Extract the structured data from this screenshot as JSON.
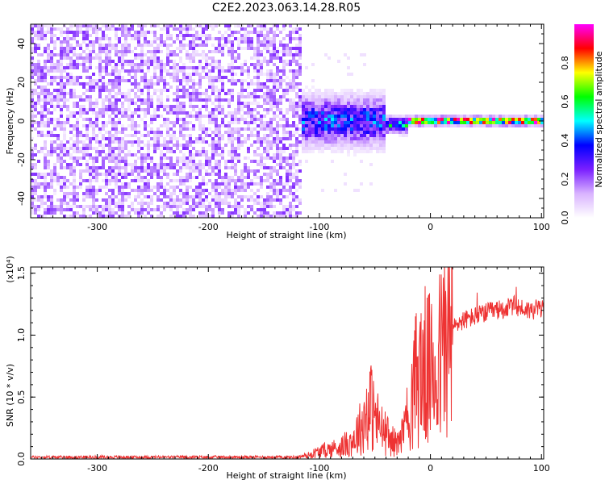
{
  "title": "C2E2.2023.063.14.28.R05",
  "chart_data": [
    {
      "type": "heatmap",
      "xlabel": "Height of straight line (km)",
      "ylabel": "Frequency (Hz)",
      "xlim": [
        -360,
        102
      ],
      "ylim": [
        -50,
        50
      ],
      "xticks": [
        -300,
        -200,
        -100,
        0,
        100
      ],
      "yticks": [
        -40,
        -20,
        0,
        20,
        40
      ],
      "colorbar": {
        "label": "Normalized spectral amplitude",
        "range": [
          0.0,
          1.0
        ],
        "ticks": [
          "0.0",
          "0.2",
          "0.4",
          "0.6",
          "0.8"
        ],
        "colors": [
          "#ffffff",
          "#d9b3ff",
          "#7a1fff",
          "#0000ff",
          "#00ffff",
          "#00ff00",
          "#ffff00",
          "#ff0000",
          "#ff00ff"
        ]
      },
      "regions": [
        {
          "x_range": [
            -360,
            -116
          ],
          "description_level": "noise",
          "amplitude": 0.15
        },
        {
          "x_range": [
            -116,
            -40
          ],
          "center_freq": 0,
          "spread_hz": 12,
          "amplitude": 0.35
        },
        {
          "x_range": [
            -40,
            -20
          ],
          "center_freq": -2,
          "spread_hz": 4,
          "amplitude": 0.45
        },
        {
          "x_range": [
            -20,
            102
          ],
          "center_freq": 0,
          "spread_hz": 2,
          "amplitude": 0.9
        }
      ]
    },
    {
      "type": "line",
      "xlabel": "Height of straight line (km)",
      "ylabel": "SNR (10 * v/v)",
      "yscale_label": "(x10⁴)",
      "xlim": [
        -360,
        102
      ],
      "ylim": [
        0,
        1.55
      ],
      "xticks": [
        -300,
        -200,
        -100,
        0,
        100
      ],
      "yticks": [
        "0.0",
        "0.5",
        "1.0",
        "1.5"
      ],
      "series_color": "#ee3333",
      "x": [
        -360,
        -300,
        -200,
        -120,
        -110,
        -100,
        -80,
        -70,
        -60,
        -55,
        -50,
        -45,
        -40,
        -35,
        -30,
        -25,
        -20,
        -17,
        -15,
        -10,
        -5,
        0,
        5,
        10,
        15,
        20,
        25,
        30,
        40,
        50,
        60,
        70,
        75,
        80,
        90,
        100,
        102
      ],
      "y": [
        0.015,
        0.015,
        0.015,
        0.015,
        0.03,
        0.06,
        0.1,
        0.15,
        0.3,
        0.45,
        0.35,
        0.25,
        0.2,
        0.15,
        0.12,
        0.2,
        0.35,
        0.45,
        0.6,
        0.7,
        0.75,
        0.7,
        0.75,
        0.85,
        1.0,
        1.05,
        1.1,
        1.12,
        1.15,
        1.18,
        1.2,
        1.22,
        1.24,
        1.22,
        1.2,
        1.22,
        1.2
      ]
    }
  ]
}
